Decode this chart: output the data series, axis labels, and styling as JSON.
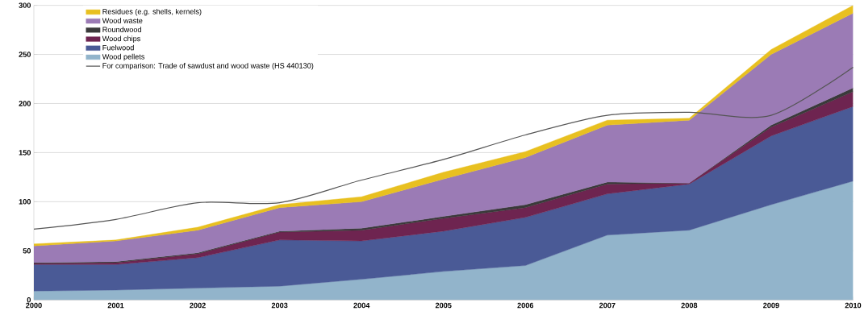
{
  "chart_data": {
    "type": "area",
    "stacked": true,
    "x": [
      2000,
      2001,
      2002,
      2003,
      2004,
      2005,
      2006,
      2007,
      2008,
      2009,
      2010
    ],
    "xlim": [
      2000,
      2010
    ],
    "xticks": [
      2000,
      2001,
      2002,
      2003,
      2004,
      2005,
      2006,
      2007,
      2008,
      2009,
      2010
    ],
    "ylim": [
      0,
      300
    ],
    "yticks": [
      0,
      50,
      100,
      150,
      200,
      250,
      300
    ],
    "grid": "y",
    "legend": "top left",
    "series": [
      {
        "name": "Wood pellets",
        "color": "#92b4cb",
        "values": [
          9,
          10,
          12,
          14,
          21,
          29,
          35,
          66,
          71,
          97,
          121
        ]
      },
      {
        "name": "Fuelwood",
        "color": "#4a5a96",
        "values": [
          27,
          26,
          31,
          47,
          39,
          41,
          49,
          42,
          47,
          70,
          76
        ]
      },
      {
        "name": "Wood chips",
        "color": "#6e2450",
        "values": [
          1,
          2,
          4,
          8,
          11,
          13,
          10,
          10,
          1,
          9,
          15
        ]
      },
      {
        "name": "Roundwood",
        "color": "#3a3a3a",
        "values": [
          1,
          1,
          1,
          1,
          2,
          2,
          3,
          2,
          0,
          2,
          4
        ]
      },
      {
        "name": "Wood waste",
        "color": "#9b7bb5",
        "values": [
          17,
          21,
          23,
          24,
          27,
          38,
          48,
          58,
          64,
          72,
          76
        ]
      },
      {
        "name": "Residues (e.g. shells, kernels)",
        "color": "#e8c020",
        "values": [
          2,
          1,
          3,
          3,
          5,
          7,
          6,
          5,
          2,
          5,
          8
        ]
      },
      {
        "name": "For comparison: Trade of sawdust and wood waste (HS 440130)",
        "type": "line",
        "color": "#555555",
        "values": [
          72,
          82,
          99,
          99,
          122,
          143,
          168,
          188,
          191,
          188,
          237
        ]
      }
    ]
  }
}
